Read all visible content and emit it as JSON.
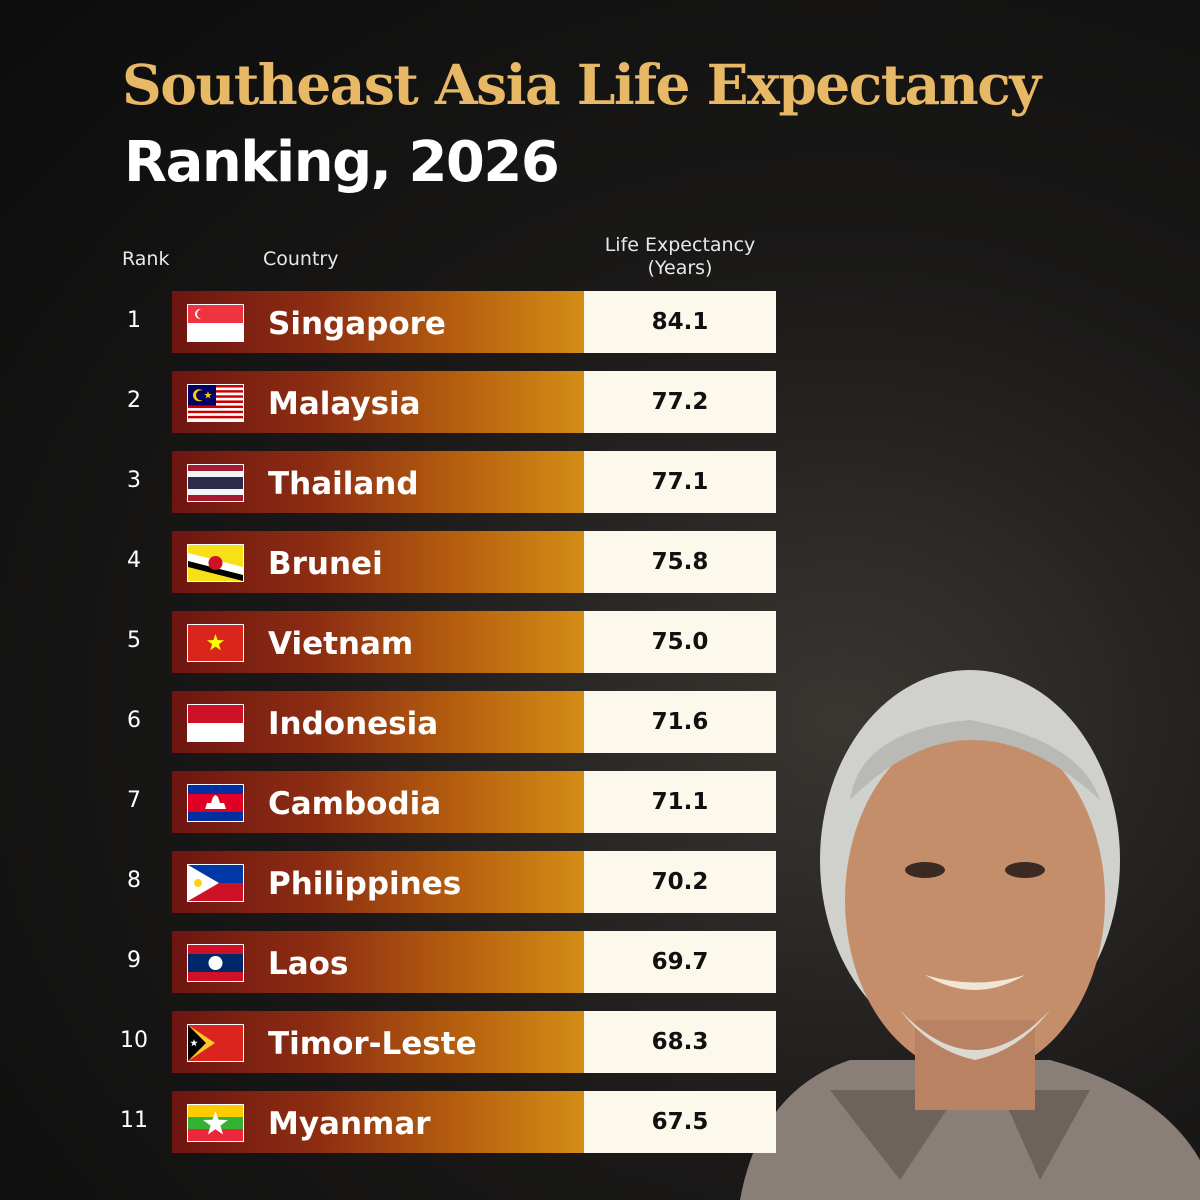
{
  "header": {
    "title": "Southeast Asia Life Expectancy",
    "subtitle": "Ranking, 2026"
  },
  "table": {
    "columns": [
      "Rank",
      "Country",
      "Life Expectancy (Years)"
    ],
    "rows": [
      [
        "1",
        "Singapore",
        "84.1"
      ],
      [
        "2",
        "Malaysia",
        "77.2"
      ],
      [
        "3",
        "Thailand",
        "77.1"
      ],
      [
        "4",
        "Brunei",
        "75.8"
      ],
      [
        "5",
        "Vietnam",
        "75.0"
      ],
      [
        "6",
        "Indonesia",
        "71.6"
      ],
      [
        "7",
        "Cambodia",
        "71.1"
      ],
      [
        "8",
        "Philippines",
        "70.2"
      ],
      [
        "9",
        "Laos",
        "69.7"
      ],
      [
        "10",
        "Timor-Leste",
        "68.3"
      ],
      [
        "11",
        "Myanmar",
        "67.5"
      ]
    ]
  }
}
